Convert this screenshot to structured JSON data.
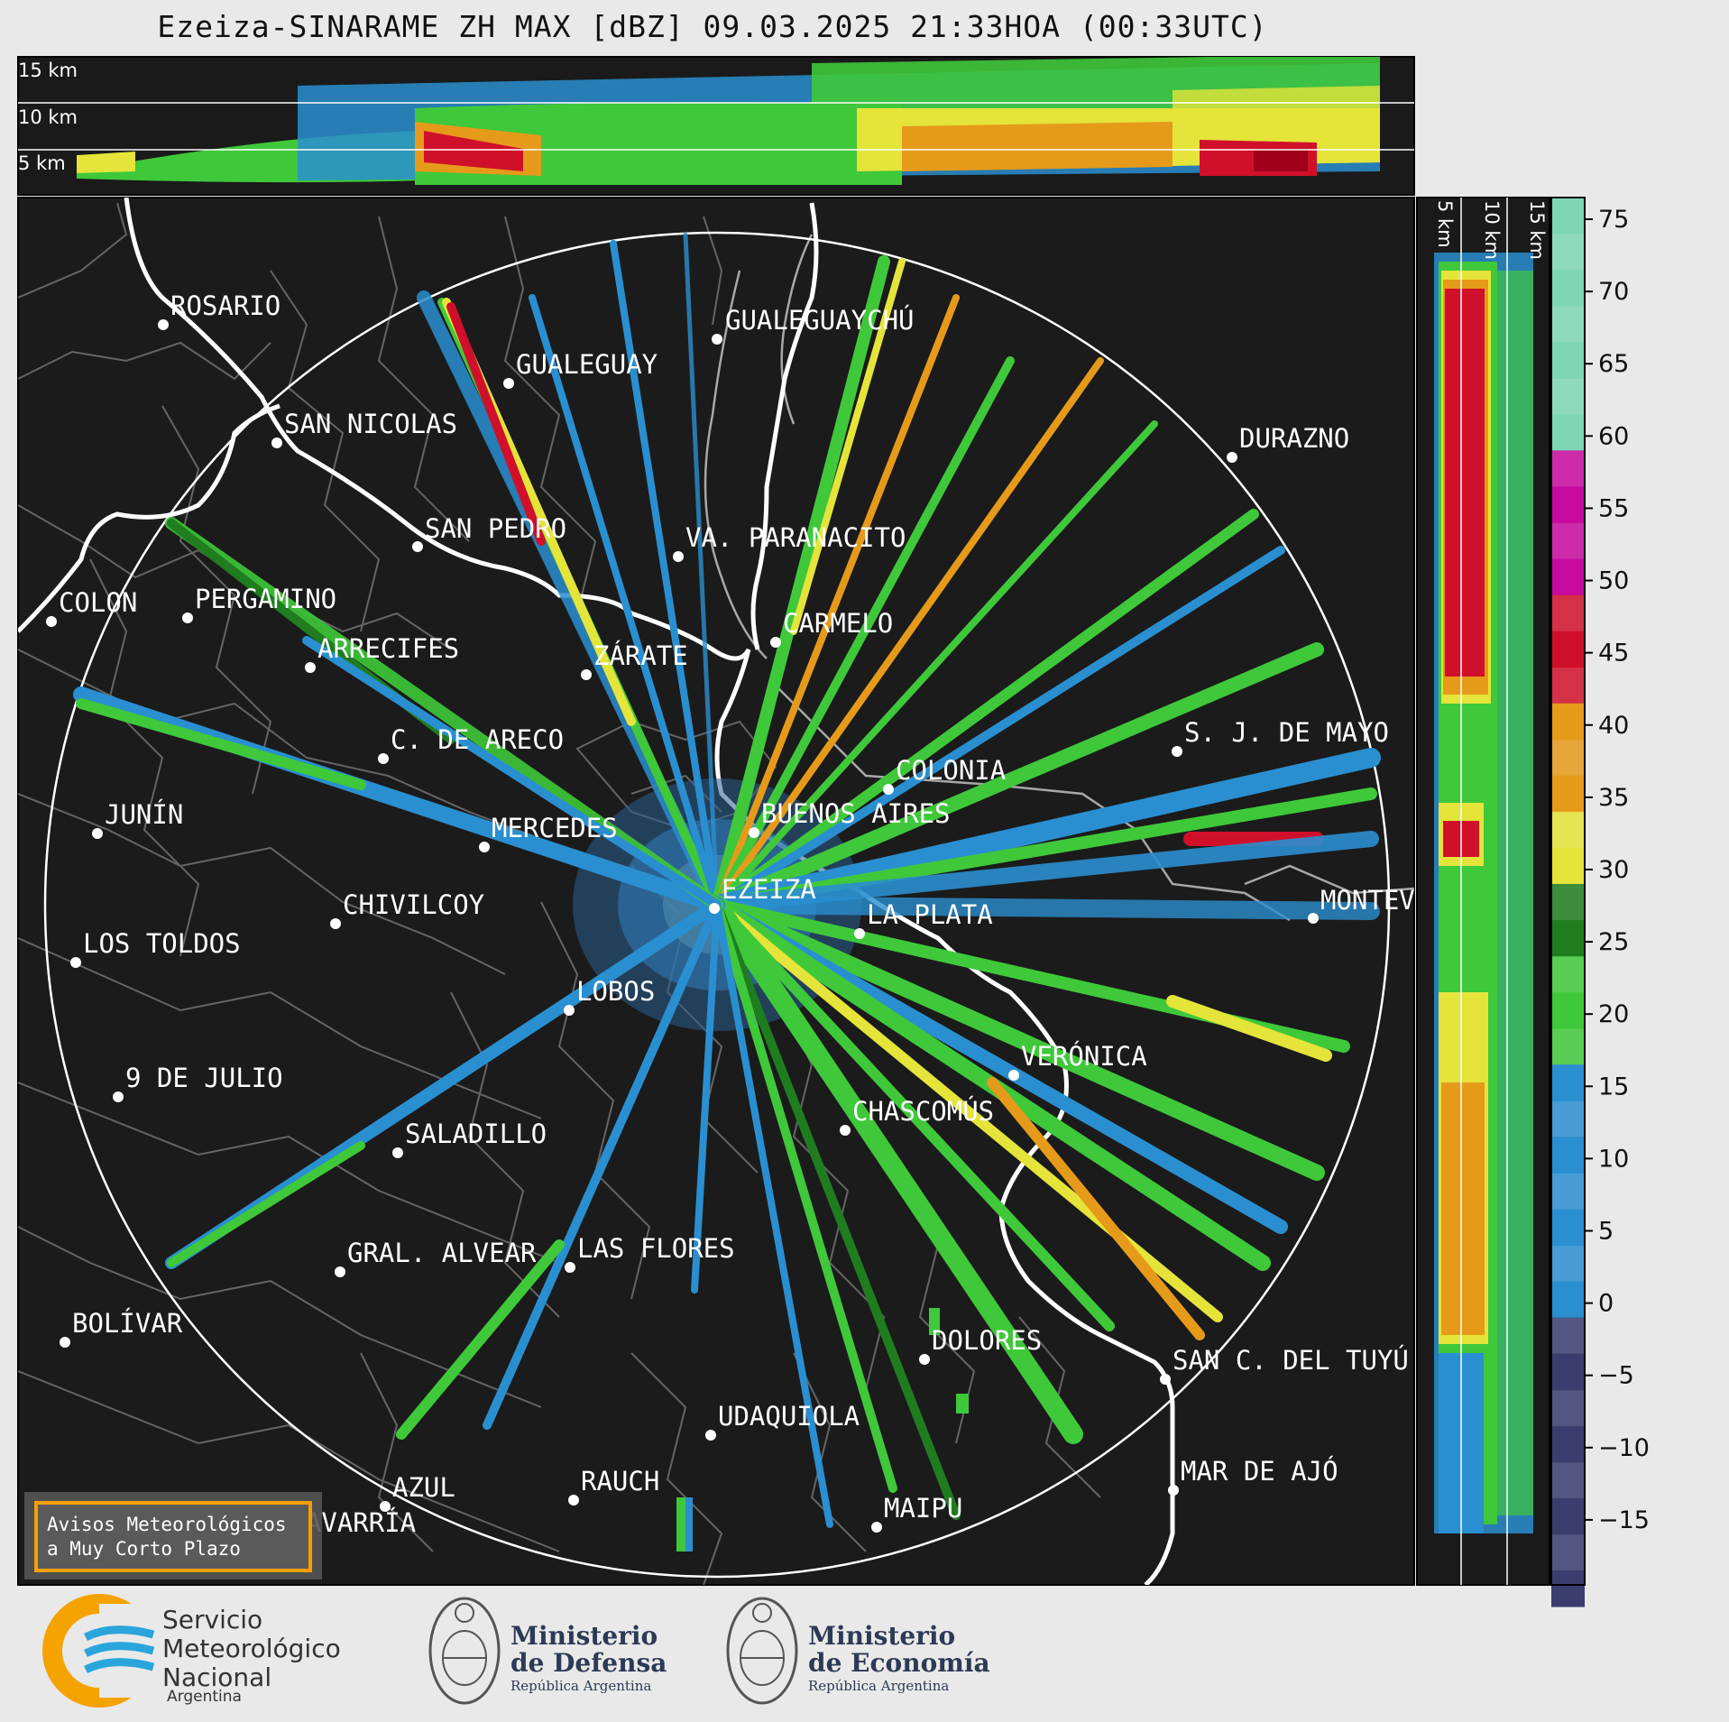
{
  "title": "Ezeiza-SINARAME ZH MAX [dBZ] 09.03.2025 21:33HOA (00:33UTC)",
  "top_panel": {
    "height_labels": [
      "15 km",
      "10 km",
      "5 km"
    ]
  },
  "right_panel": {
    "height_labels": [
      "5 km",
      "10 km",
      "15 km"
    ]
  },
  "colorbar": {
    "ticks": [
      "75",
      "70",
      "65",
      "60",
      "55",
      "50",
      "45",
      "40",
      "35",
      "30",
      "25",
      "20",
      "15",
      "10",
      "5",
      "0",
      "−5",
      "−10",
      "−15"
    ],
    "colors": {
      "low": "#3a3d6e",
      "blue": "#2a8fd0",
      "green": "#3fc83a",
      "darkgreen": "#1f7d1f",
      "yellow": "#e4e43a",
      "orange": "#e69a1a",
      "red": "#d0102a",
      "magenta": "#c70aa0",
      "white": "#ffffff",
      "teal": "#7fd6b6"
    }
  },
  "cities": [
    {
      "name": "ROSARIO"
    },
    {
      "name": "GUALEGUAYCHÚ"
    },
    {
      "name": "GUALEGUAY"
    },
    {
      "name": "SAN NICOLAS"
    },
    {
      "name": "DURAZNO"
    },
    {
      "name": "SAN PEDRO"
    },
    {
      "name": "VA. PARANACITO"
    },
    {
      "name": "COLON"
    },
    {
      "name": "PERGAMINO"
    },
    {
      "name": "CARMELO"
    },
    {
      "name": "ARRECIFES"
    },
    {
      "name": "ZÁRATE"
    },
    {
      "name": "S. J. DE MAYO"
    },
    {
      "name": "C. DE ARECO"
    },
    {
      "name": "COLONIA"
    },
    {
      "name": "JUNÍN"
    },
    {
      "name": "BUENOS AIRES"
    },
    {
      "name": "MERCEDES"
    },
    {
      "name": "EZEIZA"
    },
    {
      "name": "MONTEVIDEO"
    },
    {
      "name": "CHIVILCOY"
    },
    {
      "name": "LA PLATA"
    },
    {
      "name": "LOS TOLDOS"
    },
    {
      "name": "LOBOS"
    },
    {
      "name": "VERÓNICA"
    },
    {
      "name": "9 DE JULIO"
    },
    {
      "name": "CHASCOMÚS"
    },
    {
      "name": "SALADILLO"
    },
    {
      "name": "GRAL. ALVEAR"
    },
    {
      "name": "LAS FLORES"
    },
    {
      "name": "BOLÍVAR"
    },
    {
      "name": "DOLORES"
    },
    {
      "name": "SAN C. DEL TUYÚ"
    },
    {
      "name": "UDAQUIOLA"
    },
    {
      "name": "MAR DE AJÓ"
    },
    {
      "name": "AZUL"
    },
    {
      "name": "RAUCH"
    },
    {
      "name": "MAIPU"
    },
    {
      "name": "OLAVARRÍA"
    }
  ],
  "warning_box": {
    "line1": "Avisos Meteorológicos",
    "line2": "a Muy Corto Plazo"
  },
  "footer": {
    "smn": {
      "line1": "Servicio",
      "line2": "Meteorológico",
      "line3": "Nacional",
      "line4": "Argentina"
    },
    "defensa": {
      "line1": "Ministerio",
      "line2": "de Defensa",
      "line3": "República Argentina"
    },
    "economia": {
      "line1": "Ministerio",
      "line2": "de Economía",
      "line3": "República Argentina"
    }
  }
}
